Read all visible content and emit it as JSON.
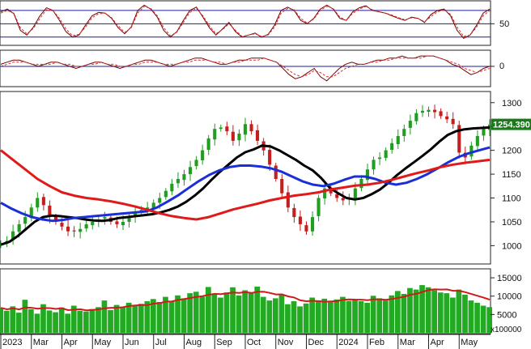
{
  "colors": {
    "background": "#ffffff",
    "frame": "#222222",
    "grid": "#1f1f8f",
    "candle_up": "#1f9e1f",
    "candle_down": "#c41e1e",
    "ma_fast": "#000000",
    "ma_mid": "#1a2fd6",
    "ma_slow": "#e01a1a",
    "osc_main": "#7a0000",
    "osc_signal": "#d63030",
    "volume": "#22aa22",
    "volume_ma": "#d11a1a",
    "badge_bg": "#1a7a1a"
  },
  "chart_data": [
    {
      "type": "line",
      "panel": "oscillator",
      "y_tick_labels": [
        "50"
      ],
      "reference_levels": [
        70,
        50,
        30
      ],
      "ylim": [
        20,
        82
      ],
      "series": [
        {
          "values": [
            68,
            72,
            65,
            40,
            33,
            45,
            62,
            74,
            70,
            55,
            38,
            30,
            33,
            48,
            62,
            67,
            66,
            58,
            44,
            35,
            45,
            70,
            78,
            72,
            60,
            40,
            30,
            38,
            55,
            70,
            75,
            60,
            44,
            33,
            42,
            52,
            38,
            30,
            33,
            36,
            30,
            34,
            48,
            70,
            75,
            70,
            55,
            50,
            58,
            72,
            78,
            72,
            58,
            55,
            68,
            74,
            77,
            70,
            68,
            66,
            62,
            58,
            55,
            60,
            58,
            52,
            64,
            70,
            72,
            62,
            40,
            28,
            33,
            48,
            66,
            72
          ]
        },
        {
          "values": [
            66,
            70,
            66,
            44,
            35,
            43,
            58,
            71,
            70,
            58,
            42,
            32,
            34,
            45,
            59,
            65,
            66,
            59,
            47,
            37,
            44,
            66,
            76,
            73,
            62,
            44,
            32,
            37,
            52,
            67,
            73,
            62,
            47,
            35,
            41,
            50,
            40,
            31,
            33,
            35,
            31,
            33,
            45,
            66,
            73,
            71,
            58,
            51,
            57,
            70,
            76,
            73,
            60,
            55,
            66,
            72,
            76,
            71,
            68,
            66,
            63,
            59,
            56,
            59,
            58,
            53,
            61,
            68,
            71,
            64,
            45,
            31,
            33,
            45,
            62,
            70
          ]
        }
      ]
    },
    {
      "type": "line",
      "panel": "momentum",
      "y_tick_labels": [
        "0"
      ],
      "ylim": [
        -9,
        7
      ],
      "series": [
        {
          "values": [
            1,
            2,
            3,
            3,
            2,
            1,
            0,
            1,
            2,
            2,
            1,
            0,
            -1,
            0,
            1,
            2,
            2,
            1,
            0,
            -1,
            0,
            1,
            2,
            3,
            3,
            2,
            1,
            0,
            1,
            2,
            3,
            4,
            4,
            3,
            2,
            1,
            1,
            2,
            3,
            3,
            4,
            4,
            4,
            3,
            2,
            -1,
            -4,
            -6,
            -5,
            -3,
            -1,
            -5,
            -7,
            -4,
            -1,
            1,
            2,
            1,
            1,
            2,
            3,
            3,
            4,
            4,
            5,
            4,
            4,
            5,
            5,
            5,
            4,
            3,
            1,
            0,
            -2,
            -4,
            -3,
            -1,
            0
          ]
        },
        {
          "values": [
            0,
            1,
            2,
            2,
            2,
            1,
            1,
            1,
            1,
            2,
            1,
            1,
            0,
            0,
            1,
            1,
            2,
            1,
            1,
            0,
            0,
            1,
            1,
            2,
            2,
            2,
            1,
            1,
            1,
            2,
            2,
            3,
            3,
            3,
            2,
            2,
            1,
            2,
            2,
            3,
            3,
            3,
            4,
            3,
            2,
            0,
            -2,
            -4,
            -5,
            -4,
            -2,
            -3,
            -5,
            -5,
            -3,
            -1,
            0,
            1,
            1,
            2,
            2,
            3,
            3,
            4,
            4,
            4,
            4,
            4,
            5,
            5,
            4,
            3,
            2,
            1,
            -1,
            -2,
            -3,
            -2,
            -1
          ]
        }
      ]
    },
    {
      "type": "candlestick",
      "panel": "price",
      "x_tick_labels": [
        "2023",
        "Mar",
        "Apr",
        "May",
        "Jun",
        "Jul",
        "Aug",
        "Sep",
        "Oct",
        "Nov",
        "Dec",
        "2024",
        "Feb",
        "Mar",
        "Apr",
        "May"
      ],
      "y_tick_labels": [
        "1000",
        "1050",
        "1100",
        "1150",
        "1200",
        "1250",
        "1300"
      ],
      "ylim": [
        965,
        1320
      ],
      "last_price_label": "1254.390",
      "close": [
        1005,
        1010,
        1030,
        1045,
        1060,
        1080,
        1100,
        1085,
        1060,
        1050,
        1040,
        1030,
        1030,
        1035,
        1045,
        1050,
        1055,
        1060,
        1050,
        1045,
        1050,
        1060,
        1070,
        1075,
        1080,
        1090,
        1100,
        1115,
        1130,
        1140,
        1150,
        1165,
        1180,
        1200,
        1225,
        1245,
        1248,
        1240,
        1220,
        1235,
        1255,
        1240,
        1220,
        1200,
        1170,
        1140,
        1110,
        1080,
        1060,
        1045,
        1030,
        1060,
        1100,
        1120,
        1110,
        1100,
        1095,
        1100,
        1120,
        1140,
        1160,
        1180,
        1185,
        1200,
        1215,
        1230,
        1245,
        1262,
        1278,
        1283,
        1285,
        1280,
        1272,
        1265,
        1255,
        1195,
        1185,
        1210,
        1230,
        1245,
        1254
      ],
      "volume_ylim": [
        0,
        17000
      ],
      "volume_y_tick_labels": [
        "5000",
        "10000",
        "15000"
      ],
      "volume_unit_label": "x100000",
      "volume": [
        6800,
        6000,
        7200,
        5500,
        9000,
        6400,
        5200,
        7800,
        6100,
        5600,
        6900,
        5200,
        7400,
        6000,
        5800,
        6500,
        7000,
        8800,
        6200,
        7600,
        6900,
        8200,
        7400,
        7900,
        8600,
        9200,
        8400,
        9800,
        8700,
        10200,
        9400,
        10800,
        11200,
        9900,
        12500,
        10400,
        9600,
        11000,
        12400,
        10200,
        11600,
        10800,
        12600,
        9800,
        8800,
        9400,
        10400,
        7800,
        8600,
        7200,
        8000,
        9600,
        8800,
        9300,
        8500,
        9100,
        9800,
        8700,
        9200,
        8600,
        8200,
        10100,
        9400,
        8800,
        10200,
        11400,
        10600,
        12200,
        11800,
        13000,
        12400,
        11600,
        11000,
        10800,
        9600,
        11800,
        10400,
        8800,
        8200,
        7400,
        7000
      ],
      "series": [
        {
          "values": [
            1002,
            1008,
            1020,
            1035,
            1050,
            1060,
            1063,
            1062,
            1060,
            1058,
            1055,
            1053,
            1052,
            1054,
            1058,
            1060,
            1062,
            1064,
            1066,
            1070,
            1075,
            1082,
            1092,
            1105,
            1120,
            1138,
            1155,
            1170,
            1185,
            1196,
            1202,
            1210,
            1208,
            1200,
            1190,
            1180,
            1168,
            1158,
            1142,
            1122,
            1110,
            1100,
            1097,
            1100,
            1108,
            1118,
            1132,
            1148,
            1162,
            1175,
            1188,
            1202,
            1218,
            1232,
            1240,
            1244,
            1246,
            1247,
            1248
          ]
        },
        {
          "values": [
            1090,
            1078,
            1068,
            1060,
            1055,
            1052,
            1054,
            1058,
            1060,
            1062,
            1064,
            1066,
            1068,
            1070,
            1072,
            1080,
            1092,
            1105,
            1120,
            1135,
            1148,
            1158,
            1165,
            1168,
            1168,
            1166,
            1162,
            1155,
            1145,
            1135,
            1128,
            1125,
            1130,
            1138,
            1145,
            1145,
            1140,
            1132,
            1128,
            1132,
            1140,
            1150,
            1162,
            1175,
            1186,
            1194,
            1200,
            1206
          ]
        },
        {
          "values": [
            1200,
            1180,
            1160,
            1140,
            1125,
            1112,
            1105,
            1100,
            1097,
            1093,
            1088,
            1082,
            1075,
            1068,
            1062,
            1058,
            1055,
            1060,
            1068,
            1076,
            1082,
            1088,
            1095,
            1100,
            1105,
            1108,
            1112,
            1118,
            1122,
            1126,
            1128,
            1132,
            1138,
            1145,
            1152,
            1158,
            1165,
            1170,
            1174,
            1177,
            1180
          ]
        }
      ]
    }
  ]
}
